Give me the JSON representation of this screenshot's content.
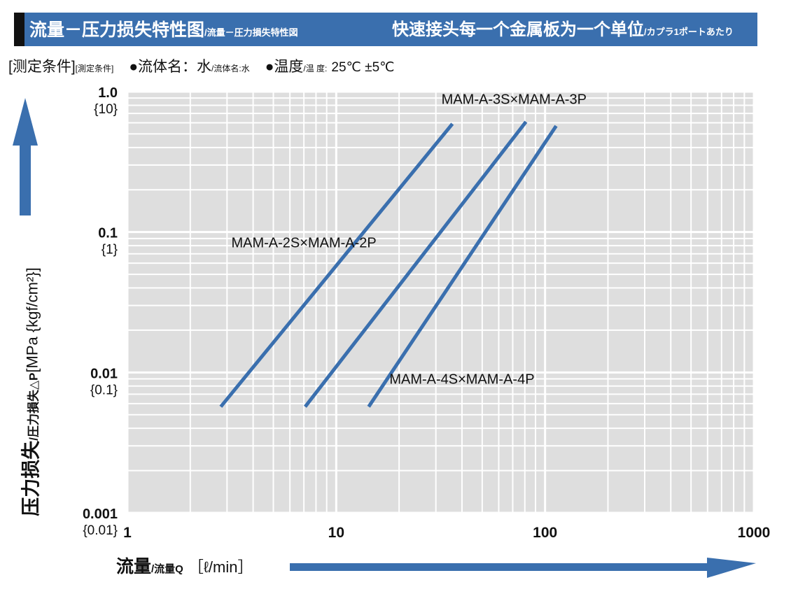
{
  "header": {
    "title_main": "流量－压力损失特性图",
    "title_sub": "/流量－圧力損失特性図",
    "right_main": "快速接头每一个金属板为一个单位",
    "right_sub": "/カプラ1ポートあたり"
  },
  "conditions": {
    "label_main": "[测定条件]",
    "label_sub": "[測定条件]",
    "fluid_main": "●流体名：水",
    "fluid_sub": "/流体名:水",
    "temp_main": "●温度",
    "temp_sub": "/温 度:",
    "temp_value": "25℃ ±5℃"
  },
  "axis": {
    "x_main": "流量",
    "x_sub": "/流量Q",
    "x_unit": "［ℓ/min］",
    "y_main": "压力损失",
    "y_sub": "/圧力損失△P",
    "y_unit": "[MPa {kgf/cm²}]"
  },
  "colors": {
    "accent": "#3a6fae",
    "plot_bg": "#dedede",
    "grid": "#ffffff",
    "line": "#3a6fae"
  },
  "chart_data": {
    "type": "line",
    "x_scale": "log",
    "y_scale": "log",
    "xlim": [
      1,
      1000
    ],
    "ylim": [
      0.001,
      1.0
    ],
    "grid": true,
    "x_ticks": [
      {
        "value": 1,
        "label": "1"
      },
      {
        "value": 10,
        "label": "10"
      },
      {
        "value": 100,
        "label": "100"
      },
      {
        "value": 1000,
        "label": "1000"
      }
    ],
    "y_ticks": [
      {
        "value": 1.0,
        "label": "1.0",
        "label2": "{10}"
      },
      {
        "value": 0.1,
        "label": "0.1",
        "label2": "{1}"
      },
      {
        "value": 0.01,
        "label": "0.01",
        "label2": "{0.1}"
      },
      {
        "value": 0.001,
        "label": "0.001",
        "label2": "{0.01}"
      }
    ],
    "series": [
      {
        "name": "MAM-A-2S×MAM-A-2P",
        "x": [
          2.8,
          36
        ],
        "y": [
          0.0057,
          0.59
        ]
      },
      {
        "name": "MAM-A-3S×MAM-A-3P",
        "x": [
          7.1,
          81
        ],
        "y": [
          0.0057,
          0.61
        ]
      },
      {
        "name": "MAM-A-4S×MAM-A-4P",
        "x": [
          14.3,
          113
        ],
        "y": [
          0.0057,
          0.57
        ]
      }
    ]
  }
}
